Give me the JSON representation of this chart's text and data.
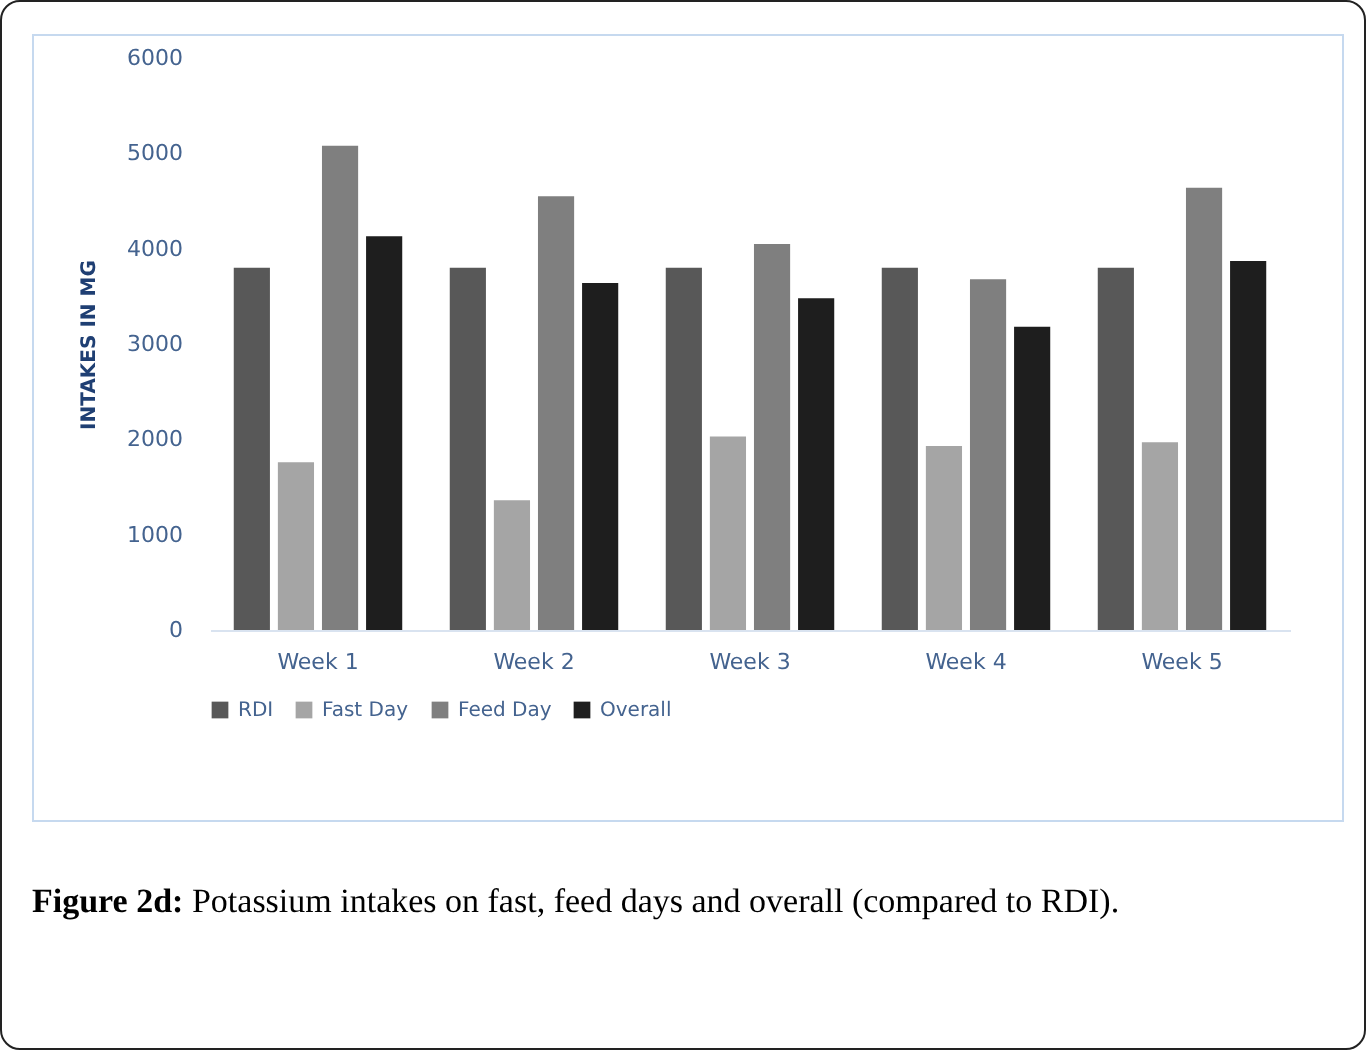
{
  "chart_data": {
    "type": "bar",
    "ylabel": "INTAKES IN MG",
    "categories": [
      "Week 1",
      "Week 2",
      "Week 3",
      "Week 4",
      "Week 5"
    ],
    "series": [
      {
        "name": "RDI",
        "color": "#585858",
        "values": [
          3800,
          3800,
          3800,
          3800,
          3800
        ]
      },
      {
        "name": "Fast Day",
        "color": "#a5a5a5",
        "values": [
          1760,
          1360,
          2030,
          1930,
          1970
        ]
      },
      {
        "name": "Feed Day",
        "color": "#7f7f7f",
        "values": [
          5080,
          4550,
          4050,
          3680,
          4640
        ]
      },
      {
        "name": "Overall",
        "color": "#1e1e1e",
        "values": [
          4130,
          3640,
          3480,
          3180,
          3870
        ]
      }
    ],
    "ylim": [
      0,
      6000
    ],
    "yticks": [
      0,
      1000,
      2000,
      3000,
      4000,
      5000,
      6000
    ],
    "grid": false,
    "legend": "bottom",
    "annotations": [
      "Figure 2d: Potassium intakes on fast, feed days and overall (compared to RDI)."
    ]
  }
}
